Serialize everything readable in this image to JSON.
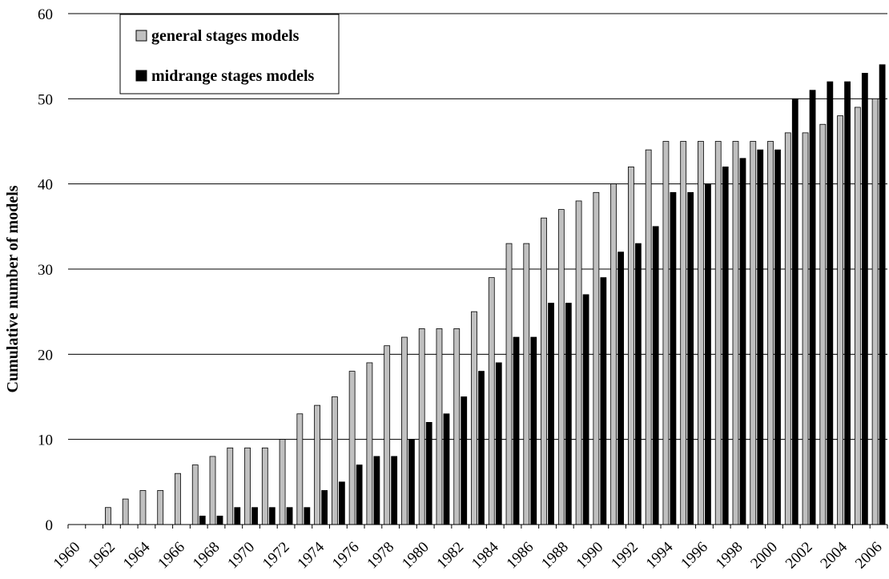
{
  "chart_data": {
    "type": "bar",
    "title": "",
    "xlabel": "",
    "ylabel": "Cumulative number of models",
    "ylim": [
      0,
      60
    ],
    "yticks": [
      0,
      10,
      20,
      30,
      40,
      50,
      60
    ],
    "grid": true,
    "legend_position": "top-left",
    "categories": [
      "1960",
      "1961",
      "1962",
      "1963",
      "1964",
      "1965",
      "1966",
      "1967",
      "1968",
      "1969",
      "1970",
      "1971",
      "1972",
      "1973",
      "1974",
      "1975",
      "1976",
      "1977",
      "1978",
      "1979",
      "1980",
      "1981",
      "1982",
      "1983",
      "1984",
      "1985",
      "1986",
      "1987",
      "1988",
      "1989",
      "1990",
      "1991",
      "1992",
      "1993",
      "1994",
      "1995",
      "1996",
      "1997",
      "1998",
      "1999",
      "2000",
      "2001",
      "2002",
      "2003",
      "2004",
      "2005",
      "2006"
    ],
    "tick_labels": [
      "1960",
      "1962",
      "1964",
      "1966",
      "1968",
      "1970",
      "1972",
      "1974",
      "1976",
      "1978",
      "1980",
      "1982",
      "1984",
      "1986",
      "1988",
      "1990",
      "1992",
      "1994",
      "1996",
      "1998",
      "2000",
      "2002",
      "2004",
      "2006"
    ],
    "series": [
      {
        "name": "general stages models",
        "color": "#c0c0c0",
        "values": [
          0,
          0,
          2,
          3,
          4,
          4,
          6,
          7,
          8,
          9,
          9,
          9,
          10,
          13,
          14,
          15,
          18,
          19,
          21,
          22,
          23,
          23,
          23,
          25,
          29,
          33,
          33,
          36,
          37,
          38,
          39,
          40,
          42,
          44,
          45,
          45,
          45,
          45,
          45,
          45,
          45,
          46,
          46,
          47,
          48,
          49,
          50
        ]
      },
      {
        "name": "midrange stages models",
        "color": "#000000",
        "values": [
          0,
          0,
          0,
          0,
          0,
          0,
          0,
          1,
          1,
          2,
          2,
          2,
          2,
          2,
          4,
          5,
          7,
          8,
          8,
          10,
          12,
          13,
          15,
          18,
          19,
          22,
          22,
          26,
          26,
          27,
          29,
          32,
          33,
          35,
          39,
          39,
          40,
          42,
          43,
          44,
          44,
          50,
          51,
          52,
          52,
          53,
          54
        ]
      }
    ]
  }
}
